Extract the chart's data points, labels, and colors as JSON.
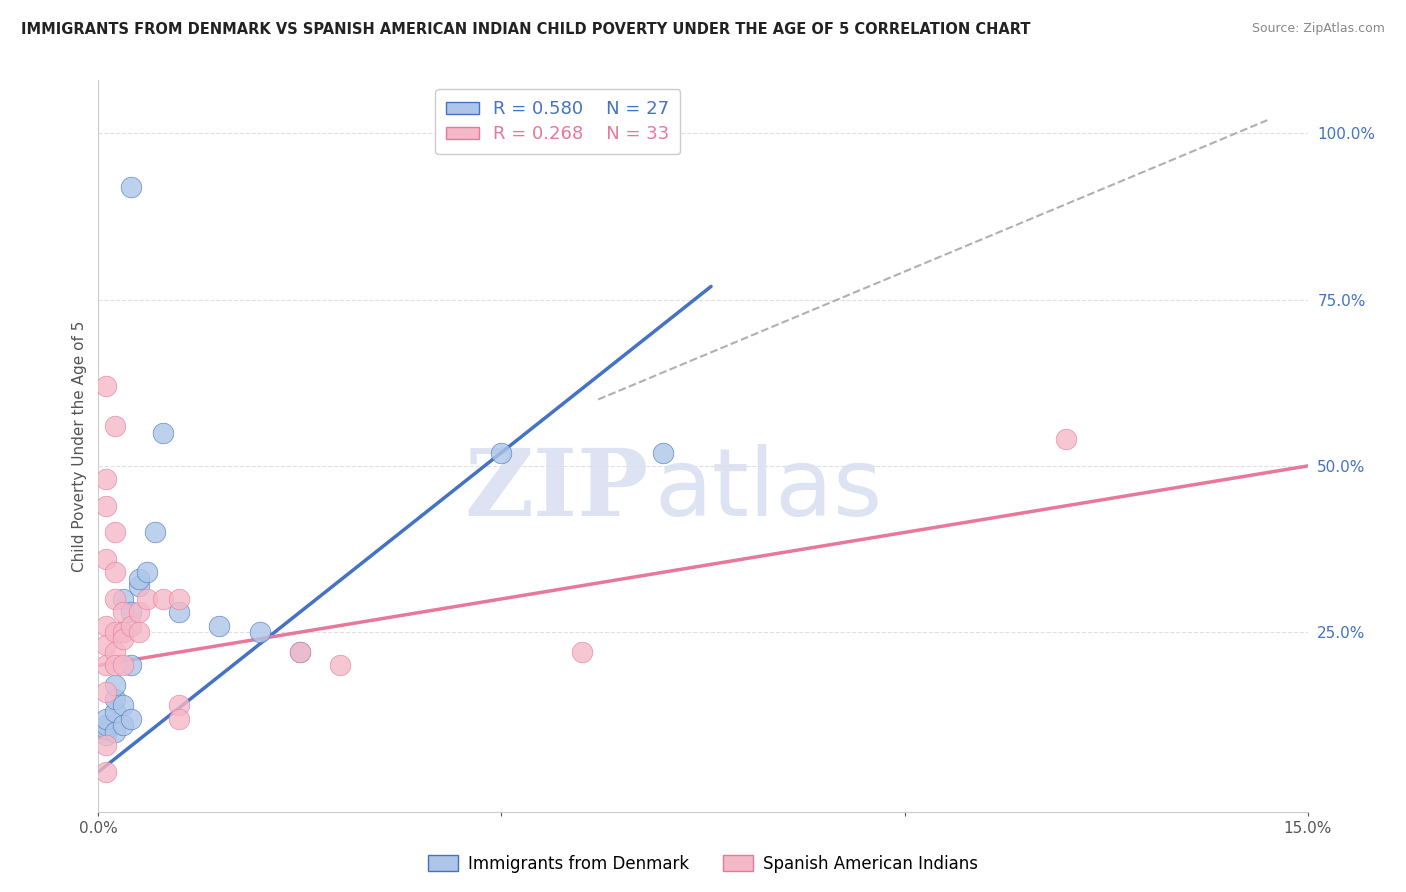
{
  "title": "IMMIGRANTS FROM DENMARK VS SPANISH AMERICAN INDIAN CHILD POVERTY UNDER THE AGE OF 5 CORRELATION CHART",
  "source": "Source: ZipAtlas.com",
  "ylabel": "Child Poverty Under the Age of 5",
  "right_yticks": [
    0.0,
    0.25,
    0.5,
    0.75,
    1.0
  ],
  "right_yticklabels": [
    "",
    "25.0%",
    "50.0%",
    "75.0%",
    "100.0%"
  ],
  "legend_label1": "Immigrants from Denmark",
  "legend_label2": "Spanish American Indians",
  "legend_R1": "R = 0.580",
  "legend_N1": "N = 27",
  "legend_R2": "R = 0.268",
  "legend_N2": "N = 33",
  "watermark_zi": "ZIP",
  "watermark_atlas": "atlas",
  "blue_color": "#adc6e8",
  "pink_color": "#f5b8c8",
  "blue_line_color": "#4472c4",
  "pink_line_color": "#e8789a",
  "blue_scatter": [
    [
      0.001,
      0.095
    ],
    [
      0.001,
      0.105
    ],
    [
      0.001,
      0.11
    ],
    [
      0.001,
      0.12
    ],
    [
      0.002,
      0.1
    ],
    [
      0.002,
      0.13
    ],
    [
      0.002,
      0.15
    ],
    [
      0.002,
      0.17
    ],
    [
      0.003,
      0.11
    ],
    [
      0.003,
      0.14
    ],
    [
      0.003,
      0.25
    ],
    [
      0.003,
      0.3
    ],
    [
      0.004,
      0.12
    ],
    [
      0.004,
      0.2
    ],
    [
      0.004,
      0.28
    ],
    [
      0.005,
      0.32
    ],
    [
      0.005,
      0.33
    ],
    [
      0.006,
      0.34
    ],
    [
      0.007,
      0.4
    ],
    [
      0.008,
      0.55
    ],
    [
      0.01,
      0.28
    ],
    [
      0.015,
      0.26
    ],
    [
      0.02,
      0.25
    ],
    [
      0.025,
      0.22
    ],
    [
      0.05,
      0.52
    ],
    [
      0.07,
      0.52
    ],
    [
      0.004,
      0.92
    ]
  ],
  "pink_scatter": [
    [
      0.001,
      0.62
    ],
    [
      0.001,
      0.48
    ],
    [
      0.001,
      0.44
    ],
    [
      0.001,
      0.36
    ],
    [
      0.001,
      0.26
    ],
    [
      0.001,
      0.23
    ],
    [
      0.001,
      0.2
    ],
    [
      0.001,
      0.16
    ],
    [
      0.001,
      0.08
    ],
    [
      0.002,
      0.4
    ],
    [
      0.002,
      0.34
    ],
    [
      0.002,
      0.3
    ],
    [
      0.002,
      0.25
    ],
    [
      0.002,
      0.22
    ],
    [
      0.002,
      0.2
    ],
    [
      0.003,
      0.28
    ],
    [
      0.003,
      0.25
    ],
    [
      0.003,
      0.24
    ],
    [
      0.003,
      0.2
    ],
    [
      0.004,
      0.26
    ],
    [
      0.005,
      0.28
    ],
    [
      0.005,
      0.25
    ],
    [
      0.006,
      0.3
    ],
    [
      0.008,
      0.3
    ],
    [
      0.01,
      0.3
    ],
    [
      0.01,
      0.14
    ],
    [
      0.01,
      0.12
    ],
    [
      0.025,
      0.22
    ],
    [
      0.03,
      0.2
    ],
    [
      0.06,
      0.22
    ],
    [
      0.12,
      0.54
    ],
    [
      0.001,
      0.04
    ],
    [
      0.002,
      0.56
    ]
  ],
  "blue_line_x": [
    0.0,
    0.076
  ],
  "blue_line_y": [
    0.04,
    0.77
  ],
  "pink_line_x": [
    0.0,
    0.15
  ],
  "pink_line_y": [
    0.2,
    0.5
  ],
  "diag_line_x": [
    0.062,
    0.145
  ],
  "diag_line_y": [
    0.6,
    1.02
  ],
  "xlim": [
    0.0,
    0.15
  ],
  "ylim": [
    -0.02,
    1.08
  ],
  "xtick_positions": [
    0.0,
    0.05,
    0.1,
    0.15
  ],
  "xtick_labels": [
    "0.0%",
    "",
    "",
    "15.0%"
  ],
  "background_color": "#ffffff",
  "grid_color": "#e0e0e0"
}
